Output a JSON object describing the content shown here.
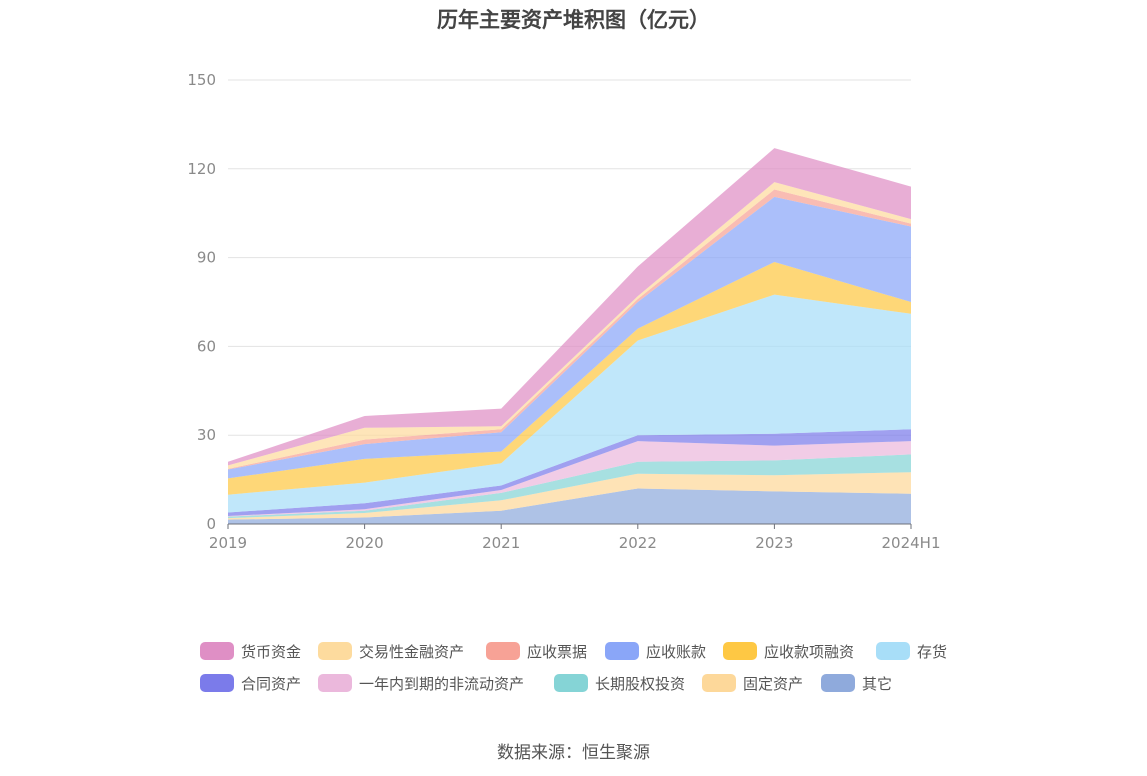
{
  "source": "数据来源：恒生聚源",
  "chart_data": {
    "type": "area",
    "stacked": true,
    "title": "历年主要资产堆积图（亿元）",
    "xlabel": "",
    "ylabel": "",
    "categories": [
      "2019",
      "2020",
      "2021",
      "2022",
      "2023",
      "2024H1"
    ],
    "y_ticks": [
      0,
      30,
      60,
      90,
      120,
      150
    ],
    "ylim": [
      0,
      150
    ],
    "grid": true,
    "legend_position": "bottom",
    "series": [
      {
        "name": "其它",
        "color": "#8faadc",
        "values": [
          1.5,
          2.2,
          4.5,
          12.0,
          11.0,
          10.2
        ]
      },
      {
        "name": "固定资产",
        "color": "#fdd89a",
        "values": [
          0.5,
          1.5,
          3.5,
          5.0,
          5.5,
          7.3
        ]
      },
      {
        "name": "长期股权投资",
        "color": "#85d4d6",
        "values": [
          0.5,
          0.8,
          2.5,
          4.0,
          5.0,
          6.0
        ]
      },
      {
        "name": "一年内到期的非流动资产",
        "color": "#ebb8dc",
        "values": [
          0.2,
          0.5,
          1.0,
          7.0,
          5.0,
          4.5
        ]
      },
      {
        "name": "合同资产",
        "color": "#7b7bea",
        "values": [
          1.2,
          2.0,
          1.5,
          2.0,
          4.0,
          4.0
        ]
      },
      {
        "name": "存货",
        "color": "#a8def8",
        "values": [
          6.0,
          7.0,
          7.5,
          32.0,
          47.0,
          39.0
        ]
      },
      {
        "name": "应收款项融资",
        "color": "#fec844",
        "values": [
          5.5,
          8.0,
          4.0,
          4.0,
          11.0,
          4.0
        ]
      },
      {
        "name": "应收账款",
        "color": "#8aa6f8",
        "values": [
          3.0,
          5.0,
          6.5,
          9.0,
          22.0,
          25.5
        ]
      },
      {
        "name": "应收票据",
        "color": "#f7a296",
        "values": [
          0.2,
          1.5,
          1.0,
          1.0,
          2.5,
          1.0
        ]
      },
      {
        "name": "交易性金融资产",
        "color": "#fddb9e",
        "values": [
          1.2,
          4.0,
          1.0,
          1.0,
          2.5,
          1.5
        ]
      },
      {
        "name": "货币资金",
        "color": "#df8fc5",
        "values": [
          1.2,
          4.0,
          6.0,
          10.0,
          11.5,
          11.0
        ]
      }
    ]
  },
  "legend_order": [
    "货币资金",
    "交易性金融资产",
    "应收票据",
    "应收账款",
    "应收款项融资",
    "存货",
    "合同资产",
    "一年内到期的非流动资产",
    "长期股权投资",
    "固定资产",
    "其它"
  ]
}
